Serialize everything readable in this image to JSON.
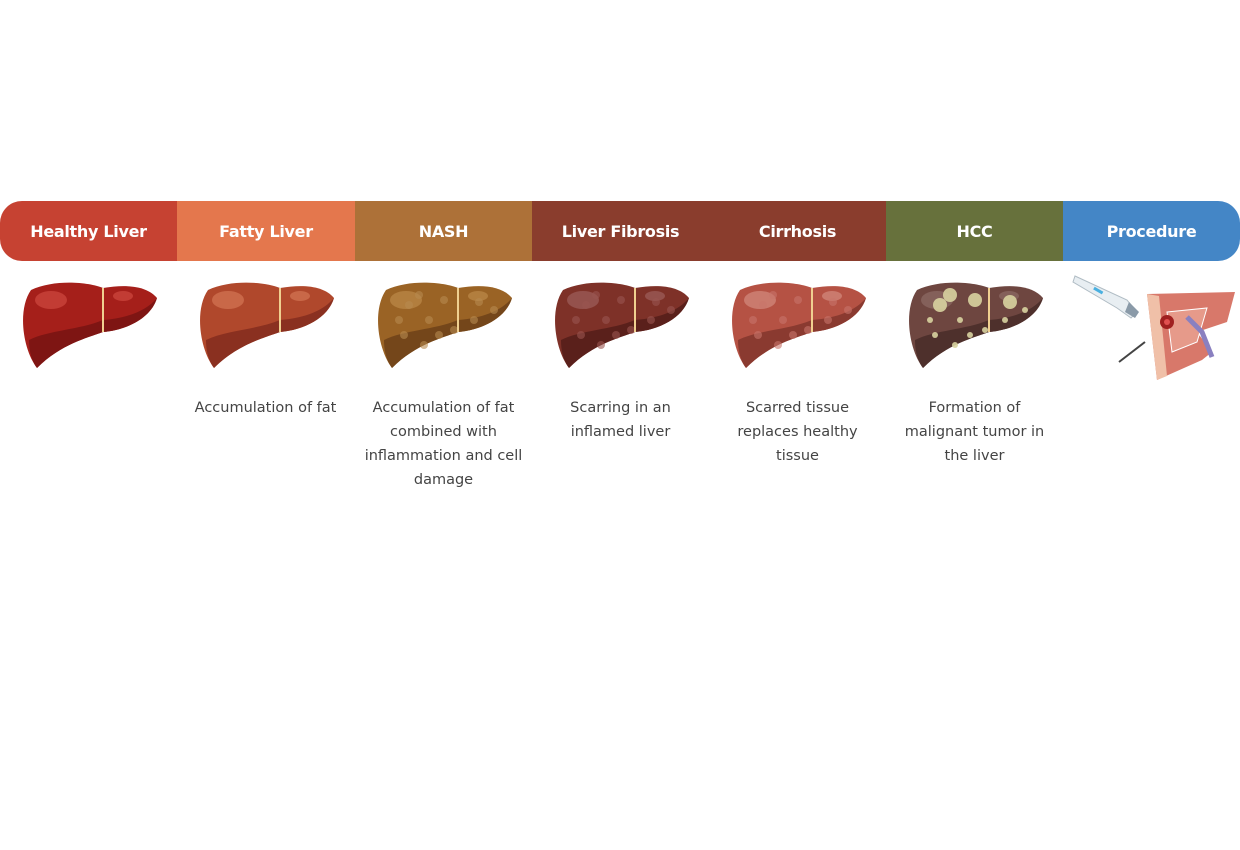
{
  "stages": [
    {
      "label": "Healthy Liver",
      "color": "#c64232",
      "description": "",
      "illustration": "healthy-liver",
      "liver": {
        "base": "#a51f1a",
        "dark": "#7e1513",
        "light": "#c9443b",
        "spots": ""
      }
    },
    {
      "label": "Fatty Liver",
      "color": "#e4774d",
      "description": "Accumulation of fat",
      "illustration": "fatty-liver",
      "liver": {
        "base": "#b0482c",
        "dark": "#8a3020",
        "light": "#d07050",
        "spots": ""
      }
    },
    {
      "label": "NASH",
      "color": "#ad7138",
      "description": "Accumulation of fat combined with inflammation and cell damage",
      "illustration": "nash-liver",
      "liver": {
        "base": "#9a6325",
        "dark": "#74461a",
        "light": "#b88445",
        "spots": "#b88a50"
      }
    },
    {
      "label": "Liver Fibrosis",
      "color": "#8a3d2d",
      "description": "Scarring in an inflamed liver",
      "illustration": "fibrotic-liver",
      "liver": {
        "base": "#7e3128",
        "dark": "#5a201b",
        "light": "#9a5a55",
        "spots": "#9a5550"
      }
    },
    {
      "label": "Cirrhosis",
      "color": "#8a3d2d",
      "description": "Scarred tissue replaces healthy tissue",
      "illustration": "cirrhotic-liver",
      "liver": {
        "base": "#b55244",
        "dark": "#8a3a30",
        "light": "#d08478",
        "spots": "#c8756a"
      }
    },
    {
      "label": "HCC",
      "color": "#67713c",
      "description": "Formation of malignant tumor in the liver",
      "illustration": "hcc-liver",
      "liver": {
        "base": "#6e4640",
        "dark": "#4e302c",
        "light": "#8a6660",
        "spots": "#d8d3a0"
      }
    },
    {
      "label": "Procedure",
      "color": "#4486c6",
      "description": "",
      "illustration": "ultrasound-guided-procedure"
    }
  ]
}
